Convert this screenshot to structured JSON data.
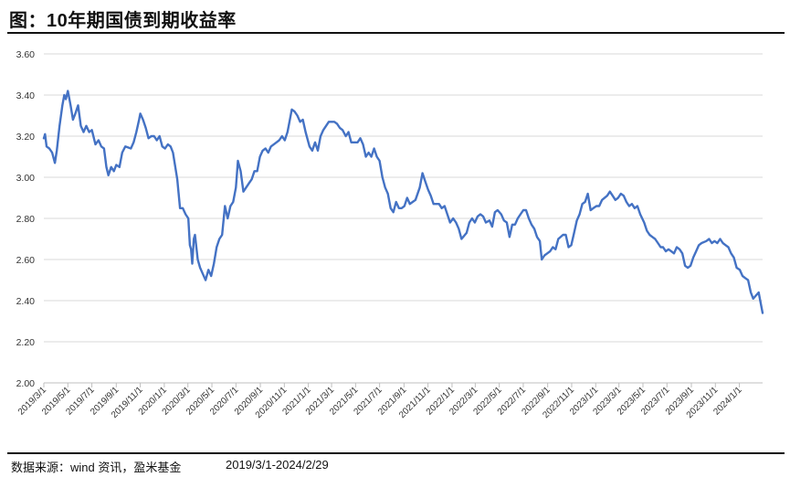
{
  "title": "图：10年期国债到期收益率",
  "footer": {
    "source": "数据来源：wind 资讯，盈米基金",
    "date_range": "2019/3/1-2024/2/29"
  },
  "colors": {
    "line": "#4472C4",
    "grid": "#D9D9D9",
    "axis": "#BFBFBF"
  },
  "chart_data": {
    "type": "line",
    "title": "",
    "xlabel": "",
    "ylabel": "",
    "ylim": [
      2.0,
      3.6
    ],
    "y_ticks": [
      "2.00",
      "2.20",
      "2.40",
      "2.60",
      "2.80",
      "3.00",
      "3.20",
      "3.40",
      "3.60"
    ],
    "x_ticks": [
      "2019/3/1",
      "2019/5/1",
      "2019/7/1",
      "2019/9/1",
      "2019/11/1",
      "2020/1/1",
      "2020/3/1",
      "2020/5/1",
      "2020/7/1",
      "2020/9/1",
      "2020/11/1",
      "2021/1/1",
      "2021/3/1",
      "2021/5/1",
      "2021/7/1",
      "2021/9/1",
      "2021/11/1",
      "2022/1/1",
      "2022/3/1",
      "2022/5/1",
      "2022/7/1",
      "2022/9/1",
      "2022/11/1",
      "2023/1/1",
      "2023/3/1",
      "2023/5/1",
      "2023/7/1",
      "2023/9/1",
      "2023/11/1",
      "2024/1/1"
    ],
    "grid": "horizontal",
    "series": [
      {
        "values": [
          [
            "2019/3/1",
            3.19
          ],
          [
            "2019/3/4",
            3.21
          ],
          [
            "2019/3/8",
            3.15
          ],
          [
            "2019/3/15",
            3.14
          ],
          [
            "2019/3/22",
            3.12
          ],
          [
            "2019/3/29",
            3.07
          ],
          [
            "2019/4/3",
            3.13
          ],
          [
            "2019/4/10",
            3.25
          ],
          [
            "2019/4/17",
            3.35
          ],
          [
            "2019/4/22",
            3.4
          ],
          [
            "2019/4/26",
            3.38
          ],
          [
            "2019/5/1",
            3.42
          ],
          [
            "2019/5/8",
            3.35
          ],
          [
            "2019/5/14",
            3.28
          ],
          [
            "2019/5/20",
            3.31
          ],
          [
            "2019/5/27",
            3.35
          ],
          [
            "2019/6/3",
            3.25
          ],
          [
            "2019/6/10",
            3.22
          ],
          [
            "2019/6/17",
            3.25
          ],
          [
            "2019/6/24",
            3.22
          ],
          [
            "2019/7/1",
            3.23
          ],
          [
            "2019/7/10",
            3.16
          ],
          [
            "2019/7/18",
            3.18
          ],
          [
            "2019/7/25",
            3.15
          ],
          [
            "2019/8/1",
            3.14
          ],
          [
            "2019/8/7",
            3.05
          ],
          [
            "2019/8/12",
            3.01
          ],
          [
            "2019/8/19",
            3.05
          ],
          [
            "2019/8/26",
            3.03
          ],
          [
            "2019/9/1",
            3.06
          ],
          [
            "2019/9/9",
            3.05
          ],
          [
            "2019/9/16",
            3.12
          ],
          [
            "2019/9/24",
            3.15
          ],
          [
            "2019/10/8",
            3.14
          ],
          [
            "2019/10/15",
            3.17
          ],
          [
            "2019/10/22",
            3.22
          ],
          [
            "2019/10/29",
            3.28
          ],
          [
            "2019/11/1",
            3.31
          ],
          [
            "2019/11/8",
            3.28
          ],
          [
            "2019/11/15",
            3.24
          ],
          [
            "2019/11/22",
            3.19
          ],
          [
            "2019/11/29",
            3.2
          ],
          [
            "2019/12/6",
            3.2
          ],
          [
            "2019/12/13",
            3.18
          ],
          [
            "2019/12/20",
            3.2
          ],
          [
            "2019/12/27",
            3.15
          ],
          [
            "2020/1/3",
            3.14
          ],
          [
            "2020/1/10",
            3.16
          ],
          [
            "2020/1/17",
            3.15
          ],
          [
            "2020/1/23",
            3.12
          ],
          [
            "2020/2/3",
            2.99
          ],
          [
            "2020/2/10",
            2.85
          ],
          [
            "2020/2/17",
            2.85
          ],
          [
            "2020/2/24",
            2.82
          ],
          [
            "2020/3/2",
            2.8
          ],
          [
            "2020/3/6",
            2.67
          ],
          [
            "2020/3/9",
            2.65
          ],
          [
            "2020/3/12",
            2.58
          ],
          [
            "2020/3/16",
            2.7
          ],
          [
            "2020/3/19",
            2.72
          ],
          [
            "2020/3/26",
            2.6
          ],
          [
            "2020/4/1",
            2.56
          ],
          [
            "2020/4/8",
            2.53
          ],
          [
            "2020/4/15",
            2.5
          ],
          [
            "2020/4/22",
            2.55
          ],
          [
            "2020/4/29",
            2.52
          ],
          [
            "2020/5/6",
            2.58
          ],
          [
            "2020/5/13",
            2.66
          ],
          [
            "2020/5/20",
            2.7
          ],
          [
            "2020/5/27",
            2.72
          ],
          [
            "2020/6/3",
            2.86
          ],
          [
            "2020/6/10",
            2.8
          ],
          [
            "2020/6/17",
            2.86
          ],
          [
            "2020/6/24",
            2.88
          ],
          [
            "2020/7/1",
            2.95
          ],
          [
            "2020/7/6",
            3.08
          ],
          [
            "2020/7/13",
            3.03
          ],
          [
            "2020/7/20",
            2.93
          ],
          [
            "2020/7/27",
            2.95
          ],
          [
            "2020/8/3",
            2.97
          ],
          [
            "2020/8/10",
            2.99
          ],
          [
            "2020/8/17",
            3.03
          ],
          [
            "2020/8/24",
            3.03
          ],
          [
            "2020/8/31",
            3.1
          ],
          [
            "2020/9/7",
            3.13
          ],
          [
            "2020/9/14",
            3.14
          ],
          [
            "2020/9/21",
            3.12
          ],
          [
            "2020/9/28",
            3.15
          ],
          [
            "2020/10/12",
            3.17
          ],
          [
            "2020/10/19",
            3.18
          ],
          [
            "2020/10/26",
            3.2
          ],
          [
            "2020/11/2",
            3.18
          ],
          [
            "2020/11/9",
            3.22
          ],
          [
            "2020/11/16",
            3.29
          ],
          [
            "2020/11/20",
            3.33
          ],
          [
            "2020/11/27",
            3.32
          ],
          [
            "2020/12/4",
            3.3
          ],
          [
            "2020/12/11",
            3.27
          ],
          [
            "2020/12/18",
            3.28
          ],
          [
            "2020/12/25",
            3.22
          ],
          [
            "2021/1/4",
            3.15
          ],
          [
            "2021/1/11",
            3.13
          ],
          [
            "2021/1/18",
            3.17
          ],
          [
            "2021/1/25",
            3.13
          ],
          [
            "2021/2/1",
            3.2
          ],
          [
            "2021/2/8",
            3.23
          ],
          [
            "2021/2/22",
            3.27
          ],
          [
            "2021/3/1",
            3.27
          ],
          [
            "2021/3/8",
            3.27
          ],
          [
            "2021/3/15",
            3.26
          ],
          [
            "2021/3/22",
            3.24
          ],
          [
            "2021/3/29",
            3.23
          ],
          [
            "2021/4/6",
            3.2
          ],
          [
            "2021/4/13",
            3.22
          ],
          [
            "2021/4/20",
            3.17
          ],
          [
            "2021/4/27",
            3.17
          ],
          [
            "2021/5/6",
            3.17
          ],
          [
            "2021/5/13",
            3.19
          ],
          [
            "2021/5/20",
            3.16
          ],
          [
            "2021/5/27",
            3.1
          ],
          [
            "2021/6/3",
            3.12
          ],
          [
            "2021/6/10",
            3.1
          ],
          [
            "2021/6/17",
            3.14
          ],
          [
            "2021/6/24",
            3.1
          ],
          [
            "2021/7/1",
            3.08
          ],
          [
            "2021/7/8",
            3.0
          ],
          [
            "2021/7/15",
            2.95
          ],
          [
            "2021/7/22",
            2.92
          ],
          [
            "2021/7/29",
            2.85
          ],
          [
            "2021/8/5",
            2.83
          ],
          [
            "2021/8/12",
            2.88
          ],
          [
            "2021/8/19",
            2.85
          ],
          [
            "2021/8/26",
            2.85
          ],
          [
            "2021/9/2",
            2.86
          ],
          [
            "2021/9/9",
            2.9
          ],
          [
            "2021/9/16",
            2.87
          ],
          [
            "2021/9/23",
            2.88
          ],
          [
            "2021/9/30",
            2.89
          ],
          [
            "2021/10/11",
            2.95
          ],
          [
            "2021/10/18",
            3.02
          ],
          [
            "2021/10/25",
            2.98
          ],
          [
            "2021/11/1",
            2.94
          ],
          [
            "2021/11/8",
            2.91
          ],
          [
            "2021/11/15",
            2.87
          ],
          [
            "2021/11/22",
            2.87
          ],
          [
            "2021/11/29",
            2.87
          ],
          [
            "2021/12/6",
            2.85
          ],
          [
            "2021/12/13",
            2.86
          ],
          [
            "2021/12/20",
            2.82
          ],
          [
            "2021/12/27",
            2.78
          ],
          [
            "2022/1/4",
            2.8
          ],
          [
            "2022/1/11",
            2.78
          ],
          [
            "2022/1/18",
            2.75
          ],
          [
            "2022/1/25",
            2.7
          ],
          [
            "2022/2/7",
            2.73
          ],
          [
            "2022/2/14",
            2.78
          ],
          [
            "2022/2/21",
            2.8
          ],
          [
            "2022/2/28",
            2.78
          ],
          [
            "2022/3/7",
            2.81
          ],
          [
            "2022/3/14",
            2.82
          ],
          [
            "2022/3/21",
            2.81
          ],
          [
            "2022/3/28",
            2.78
          ],
          [
            "2022/4/6",
            2.79
          ],
          [
            "2022/4/13",
            2.76
          ],
          [
            "2022/4/20",
            2.83
          ],
          [
            "2022/4/27",
            2.84
          ],
          [
            "2022/5/6",
            2.82
          ],
          [
            "2022/5/13",
            2.79
          ],
          [
            "2022/5/20",
            2.78
          ],
          [
            "2022/5/27",
            2.71
          ],
          [
            "2022/6/3",
            2.77
          ],
          [
            "2022/6/10",
            2.77
          ],
          [
            "2022/6/17",
            2.8
          ],
          [
            "2022/6/24",
            2.82
          ],
          [
            "2022/7/1",
            2.84
          ],
          [
            "2022/7/8",
            2.84
          ],
          [
            "2022/7/15",
            2.8
          ],
          [
            "2022/7/22",
            2.77
          ],
          [
            "2022/7/29",
            2.75
          ],
          [
            "2022/8/5",
            2.71
          ],
          [
            "2022/8/12",
            2.69
          ],
          [
            "2022/8/17",
            2.6
          ],
          [
            "2022/8/24",
            2.62
          ],
          [
            "2022/8/31",
            2.63
          ],
          [
            "2022/9/7",
            2.64
          ],
          [
            "2022/9/14",
            2.66
          ],
          [
            "2022/9/21",
            2.65
          ],
          [
            "2022/9/28",
            2.7
          ],
          [
            "2022/10/10",
            2.72
          ],
          [
            "2022/10/17",
            2.72
          ],
          [
            "2022/10/24",
            2.66
          ],
          [
            "2022/10/31",
            2.67
          ],
          [
            "2022/11/7",
            2.73
          ],
          [
            "2022/11/14",
            2.79
          ],
          [
            "2022/11/21",
            2.82
          ],
          [
            "2022/11/28",
            2.87
          ],
          [
            "2022/12/5",
            2.88
          ],
          [
            "2022/12/12",
            2.92
          ],
          [
            "2022/12/19",
            2.84
          ],
          [
            "2022/12/26",
            2.85
          ],
          [
            "2023/1/3",
            2.86
          ],
          [
            "2023/1/10",
            2.86
          ],
          [
            "2023/1/17",
            2.89
          ],
          [
            "2023/1/30",
            2.91
          ],
          [
            "2023/2/6",
            2.93
          ],
          [
            "2023/2/13",
            2.91
          ],
          [
            "2023/2/20",
            2.89
          ],
          [
            "2023/2/27",
            2.9
          ],
          [
            "2023/3/6",
            2.92
          ],
          [
            "2023/3/13",
            2.91
          ],
          [
            "2023/3/20",
            2.88
          ],
          [
            "2023/3/27",
            2.86
          ],
          [
            "2023/4/3",
            2.87
          ],
          [
            "2023/4/10",
            2.85
          ],
          [
            "2023/4/17",
            2.86
          ],
          [
            "2023/4/24",
            2.82
          ],
          [
            "2023/5/4",
            2.78
          ],
          [
            "2023/5/11",
            2.74
          ],
          [
            "2023/5/18",
            2.72
          ],
          [
            "2023/5/25",
            2.71
          ],
          [
            "2023/6/1",
            2.7
          ],
          [
            "2023/6/8",
            2.68
          ],
          [
            "2023/6/15",
            2.66
          ],
          [
            "2023/6/21",
            2.66
          ],
          [
            "2023/6/28",
            2.64
          ],
          [
            "2023/7/5",
            2.65
          ],
          [
            "2023/7/12",
            2.64
          ],
          [
            "2023/7/19",
            2.63
          ],
          [
            "2023/7/26",
            2.66
          ],
          [
            "2023/8/2",
            2.65
          ],
          [
            "2023/8/9",
            2.63
          ],
          [
            "2023/8/16",
            2.57
          ],
          [
            "2023/8/23",
            2.56
          ],
          [
            "2023/8/30",
            2.57
          ],
          [
            "2023/9/6",
            2.61
          ],
          [
            "2023/9/13",
            2.64
          ],
          [
            "2023/9/20",
            2.67
          ],
          [
            "2023/9/27",
            2.68
          ],
          [
            "2023/10/9",
            2.69
          ],
          [
            "2023/10/16",
            2.7
          ],
          [
            "2023/10/23",
            2.68
          ],
          [
            "2023/10/30",
            2.69
          ],
          [
            "2023/11/6",
            2.68
          ],
          [
            "2023/11/13",
            2.7
          ],
          [
            "2023/11/20",
            2.68
          ],
          [
            "2023/11/27",
            2.67
          ],
          [
            "2023/12/4",
            2.66
          ],
          [
            "2023/12/11",
            2.63
          ],
          [
            "2023/12/18",
            2.61
          ],
          [
            "2023/12/25",
            2.56
          ],
          [
            "2024/1/2",
            2.55
          ],
          [
            "2024/1/9",
            2.52
          ],
          [
            "2024/1/16",
            2.51
          ],
          [
            "2024/1/23",
            2.5
          ],
          [
            "2024/1/30",
            2.44
          ],
          [
            "2024/2/5",
            2.41
          ],
          [
            "2024/2/19",
            2.44
          ],
          [
            "2024/2/23",
            2.4
          ],
          [
            "2024/2/29",
            2.34
          ]
        ]
      }
    ]
  }
}
